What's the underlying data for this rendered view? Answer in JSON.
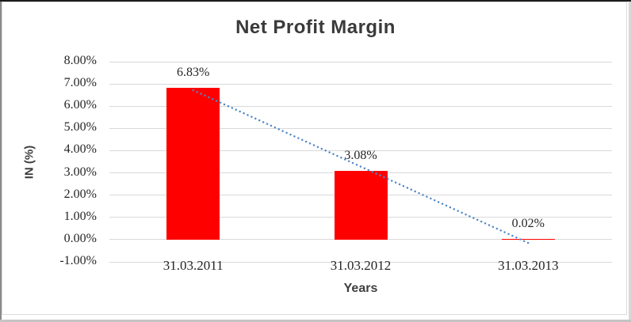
{
  "title": "Net Profit Margin",
  "colors": {
    "bar": "#ff0000",
    "trendline": "#4f86c6",
    "gridline": "#d9d9d9",
    "title_text": "#3a3a3a",
    "axis_text": "#262626",
    "axis_title_text": "#3f3f3f",
    "chart_border": "#dcdcdc"
  },
  "chart_data": {
    "type": "bar",
    "title": "Net Profit Margin",
    "xlabel": "Years",
    "ylabel": "IN (%)",
    "categories": [
      "31.03.2011",
      "31.03.2012",
      "31.03.2013"
    ],
    "values": [
      6.83,
      3.08,
      0.02
    ],
    "data_labels": [
      "6.83%",
      "3.08%",
      "0.02%"
    ],
    "y_ticks": [
      "8.00%",
      "7.00%",
      "6.00%",
      "5.00%",
      "4.00%",
      "3.00%",
      "2.00%",
      "1.00%",
      "0.00%",
      "-1.00%"
    ],
    "y_tick_values": [
      8,
      7,
      6,
      5,
      4,
      3,
      2,
      1,
      0,
      -1
    ],
    "ylim": [
      -1,
      8
    ],
    "grid": true,
    "legend": false,
    "bar_color": "#ff0000",
    "trendline": {
      "style": "dotted",
      "color": "#4f86c6",
      "start_category_index": 0,
      "end_category_index": 2,
      "start_value": 6.72,
      "end_value": -0.15
    }
  }
}
